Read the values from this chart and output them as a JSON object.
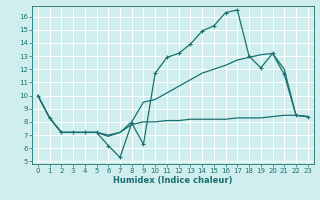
{
  "background_color": "#d0eeee",
  "grid_color": "#ffffff",
  "line_color": "#1a7070",
  "xlabel": "Humidex (Indice chaleur)",
  "xlim": [
    -0.5,
    23.5
  ],
  "ylim": [
    4.8,
    16.8
  ],
  "yticks": [
    5,
    6,
    7,
    8,
    9,
    10,
    11,
    12,
    13,
    14,
    15,
    16
  ],
  "xticks": [
    0,
    1,
    2,
    3,
    4,
    5,
    6,
    7,
    8,
    9,
    10,
    11,
    12,
    13,
    14,
    15,
    16,
    17,
    18,
    19,
    20,
    21,
    22,
    23
  ],
  "line1_x": [
    0,
    1,
    2,
    3,
    4,
    5,
    6,
    7,
    8,
    9,
    10,
    11,
    12,
    13,
    14,
    15,
    16,
    17,
    18,
    19,
    20,
    21,
    22,
    23
  ],
  "line1_y": [
    10.0,
    8.3,
    7.2,
    7.2,
    7.2,
    7.2,
    6.2,
    5.3,
    7.9,
    6.3,
    11.7,
    12.9,
    13.2,
    13.9,
    14.9,
    15.3,
    16.3,
    16.5,
    13.0,
    12.1,
    13.2,
    11.6,
    8.5,
    8.4
  ],
  "line2_x": [
    0,
    1,
    2,
    3,
    4,
    5,
    6,
    7,
    8,
    9,
    10,
    11,
    12,
    13,
    14,
    15,
    16,
    17,
    18,
    19,
    20,
    21,
    22,
    23
  ],
  "line2_y": [
    10.0,
    8.3,
    7.2,
    7.2,
    7.2,
    7.2,
    6.9,
    7.2,
    8.0,
    9.5,
    9.7,
    10.2,
    10.7,
    11.2,
    11.7,
    12.0,
    12.3,
    12.7,
    12.9,
    13.1,
    13.2,
    12.0,
    8.5,
    8.4
  ],
  "line3_x": [
    0,
    1,
    2,
    3,
    4,
    5,
    6,
    7,
    8,
    9,
    10,
    11,
    12,
    13,
    14,
    15,
    16,
    17,
    18,
    19,
    20,
    21,
    22,
    23
  ],
  "line3_y": [
    10.0,
    8.3,
    7.2,
    7.2,
    7.2,
    7.2,
    7.0,
    7.2,
    7.8,
    8.0,
    8.0,
    8.1,
    8.1,
    8.2,
    8.2,
    8.2,
    8.2,
    8.3,
    8.3,
    8.3,
    8.4,
    8.5,
    8.5,
    8.4
  ],
  "tick_fontsize": 5,
  "xlabel_fontsize": 6,
  "marker": "+",
  "markersize": 3.5,
  "linewidth": 0.9
}
